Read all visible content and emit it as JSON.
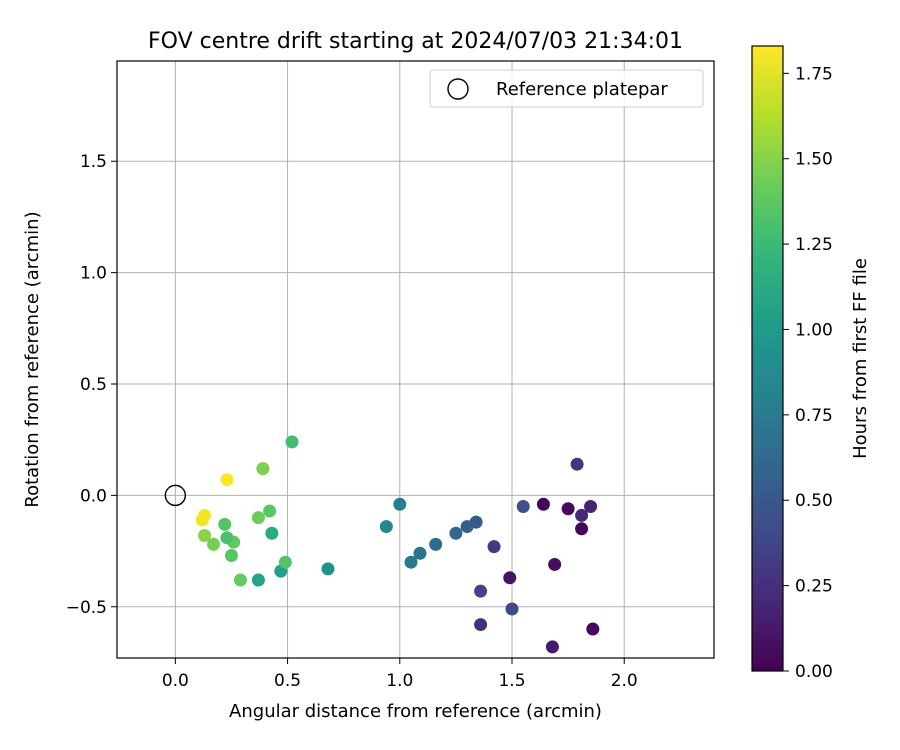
{
  "chart_data": {
    "type": "scatter",
    "title": "FOV centre drift starting at 2024/07/03 21:34:01",
    "xlabel": "Angular distance from reference (arcmin)",
    "ylabel": "Rotation from reference (arcmin)",
    "xlim": [
      -0.26,
      2.4
    ],
    "ylim": [
      -0.73,
      1.95
    ],
    "xticks": [
      0.0,
      0.5,
      1.0,
      1.5,
      2.0
    ],
    "xtick_labels": [
      "0.0",
      "0.5",
      "1.0",
      "1.5",
      "2.0"
    ],
    "yticks": [
      -0.5,
      0.0,
      0.5,
      1.0,
      1.5
    ],
    "ytick_labels": [
      "−0.5",
      "0.0",
      "0.5",
      "1.0",
      "1.5"
    ],
    "grid": true,
    "legend": {
      "position": "upper-right",
      "entries": [
        "Reference platepar"
      ]
    },
    "reference_point": {
      "x": 0.0,
      "y": 0.0,
      "label": "Reference platepar",
      "marker": "open-circle"
    },
    "colorbar": {
      "label": "Hours from first FF file",
      "range": [
        0.0,
        1.83
      ],
      "ticks": [
        0.0,
        0.25,
        0.5,
        0.75,
        1.0,
        1.25,
        1.5,
        1.75
      ],
      "tick_labels": [
        "0.00",
        "0.25",
        "0.50",
        "0.75",
        "1.00",
        "1.25",
        "1.50",
        "1.75"
      ],
      "colormap": "viridis"
    },
    "points": [
      {
        "x": 1.64,
        "y": -0.04,
        "t": 0.02
      },
      {
        "x": 1.75,
        "y": -0.06,
        "t": 0.05
      },
      {
        "x": 1.86,
        "y": -0.6,
        "t": 0.04
      },
      {
        "x": 1.81,
        "y": -0.15,
        "t": 0.03
      },
      {
        "x": 1.69,
        "y": -0.31,
        "t": 0.07
      },
      {
        "x": 1.49,
        "y": -0.37,
        "t": 0.1
      },
      {
        "x": 1.68,
        "y": -0.68,
        "t": 0.14
      },
      {
        "x": 1.85,
        "y": -0.05,
        "t": 0.18
      },
      {
        "x": 1.81,
        "y": -0.09,
        "t": 0.22
      },
      {
        "x": 1.79,
        "y": 0.14,
        "t": 0.28
      },
      {
        "x": 1.36,
        "y": -0.58,
        "t": 0.26
      },
      {
        "x": 1.42,
        "y": -0.23,
        "t": 0.32
      },
      {
        "x": 1.5,
        "y": -0.51,
        "t": 0.4
      },
      {
        "x": 1.36,
        "y": -0.43,
        "t": 0.38
      },
      {
        "x": 1.55,
        "y": -0.05,
        "t": 0.45
      },
      {
        "x": 1.34,
        "y": -0.12,
        "t": 0.52
      },
      {
        "x": 1.3,
        "y": -0.14,
        "t": 0.55
      },
      {
        "x": 1.25,
        "y": -0.17,
        "t": 0.6
      },
      {
        "x": 1.16,
        "y": -0.22,
        "t": 0.65
      },
      {
        "x": 1.09,
        "y": -0.26,
        "t": 0.7
      },
      {
        "x": 1.05,
        "y": -0.3,
        "t": 0.74
      },
      {
        "x": 1.0,
        "y": -0.04,
        "t": 0.78
      },
      {
        "x": 0.94,
        "y": -0.14,
        "t": 0.82
      },
      {
        "x": 0.68,
        "y": -0.33,
        "t": 0.92
      },
      {
        "x": 0.47,
        "y": -0.34,
        "t": 1.03
      },
      {
        "x": 0.37,
        "y": -0.38,
        "t": 1.06
      },
      {
        "x": 0.43,
        "y": -0.17,
        "t": 1.12
      },
      {
        "x": 0.52,
        "y": 0.24,
        "t": 1.28
      },
      {
        "x": 0.49,
        "y": -0.3,
        "t": 1.33
      },
      {
        "x": 0.42,
        "y": -0.07,
        "t": 1.36
      },
      {
        "x": 0.37,
        "y": -0.1,
        "t": 1.42
      },
      {
        "x": 0.39,
        "y": 0.12,
        "t": 1.46
      },
      {
        "x": 0.29,
        "y": -0.38,
        "t": 1.4
      },
      {
        "x": 0.26,
        "y": -0.21,
        "t": 1.38
      },
      {
        "x": 0.25,
        "y": -0.27,
        "t": 1.35
      },
      {
        "x": 0.23,
        "y": -0.19,
        "t": 1.3
      },
      {
        "x": 0.22,
        "y": -0.13,
        "t": 1.34
      },
      {
        "x": 0.17,
        "y": -0.22,
        "t": 1.45
      },
      {
        "x": 0.13,
        "y": -0.18,
        "t": 1.5
      },
      {
        "x": 0.12,
        "y": -0.11,
        "t": 1.78
      },
      {
        "x": 0.13,
        "y": -0.09,
        "t": 1.8
      },
      {
        "x": 0.23,
        "y": 0.07,
        "t": 1.82
      }
    ]
  }
}
